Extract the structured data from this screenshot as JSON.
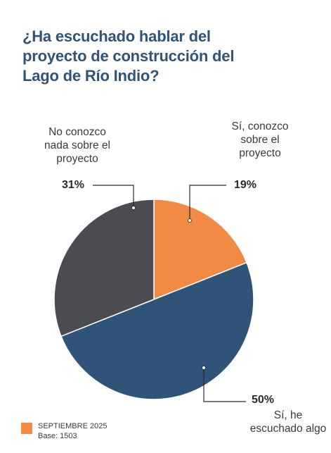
{
  "title_lines": [
    "¿Ha escuchado hablar del",
    "proyecto de construcción del",
    "Lago de Río Indio?"
  ],
  "legend": {
    "period": "SEPTIEMBRE 2025",
    "base": "Base: 1503",
    "swatch_color": "#f08a45"
  },
  "chart_data": {
    "type": "pie",
    "title": "¿Ha escuchado hablar del proyecto de construcción del Lago de Río Indio?",
    "slices": [
      {
        "label": "Sí, conozco sobre el proyecto",
        "label_lines": [
          "Sí, conozco",
          "sobre el",
          "proyecto"
        ],
        "value": 19,
        "display": "19%",
        "color": "#f08a45"
      },
      {
        "label": "Sí, he escuchado algo",
        "label_lines": [
          "Sí, he",
          "escuchado algo"
        ],
        "value": 50,
        "display": "50%",
        "color": "#2f5478"
      },
      {
        "label": "No conozco nada sobre el proyecto",
        "label_lines": [
          "No conozco",
          "nada sobre el",
          "proyecto"
        ],
        "value": 31,
        "display": "31%",
        "color": "#4b4c51"
      }
    ],
    "start_angle": "12 o'clock",
    "direction": "clockwise"
  }
}
